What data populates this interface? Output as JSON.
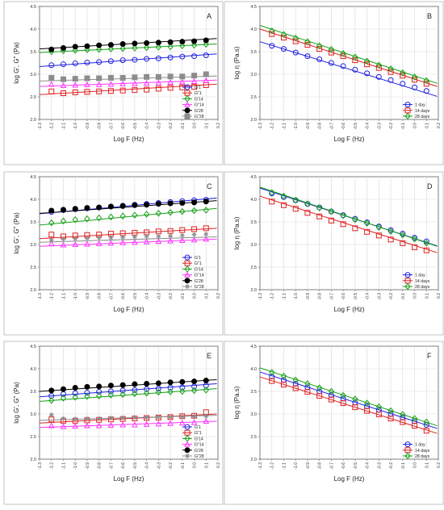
{
  "colors": {
    "blue": "#1f1fe0",
    "red": "#e02020",
    "green": "#16a016",
    "black": "#000000",
    "gray": "#8c8c8c",
    "magenta": "#ff33ff",
    "frame": "#7f7f7f",
    "grid": "#d9d9d9"
  },
  "chart_data": [
    {
      "panel": "A",
      "type": "scatter",
      "xlabel": "Log F (Hz)",
      "ylabel": "log G', G\" (Pa)",
      "xlim": [
        -1.3,
        0.2
      ],
      "ylim": [
        2.0,
        4.5
      ],
      "xticks": [
        "-1.3",
        "-1.2",
        "-1.1",
        "-1.0",
        "-0.9",
        "-0.8",
        "-0.7",
        "-0.6",
        "-0.5",
        "-0.4",
        "-0.3",
        "-0.2",
        "-0.1",
        "0.0",
        "0.1",
        "0.2"
      ],
      "yticks": [
        "2.0",
        "2.5",
        "3.0",
        "3.5",
        "4.0",
        "4.5"
      ],
      "x": [
        -1.2,
        -1.1,
        -1.0,
        -0.9,
        -0.8,
        -0.7,
        -0.6,
        -0.5,
        -0.4,
        -0.3,
        -0.2,
        -0.1,
        0.0,
        0.1
      ],
      "legend_position": "bottom-right",
      "series": [
        {
          "name": "G'1",
          "color": "blue",
          "marker": "circle-open",
          "values": [
            3.2,
            3.22,
            3.24,
            3.26,
            3.27,
            3.29,
            3.31,
            3.32,
            3.34,
            3.35,
            3.37,
            3.39,
            3.4,
            3.42
          ],
          "fit": [
            3.17,
            3.45
          ]
        },
        {
          "name": "G\"1",
          "color": "red",
          "marker": "square-open",
          "values": [
            2.62,
            2.58,
            2.6,
            2.61,
            2.62,
            2.63,
            2.64,
            2.65,
            2.66,
            2.68,
            2.7,
            2.71,
            2.72,
            2.76
          ],
          "fit": [
            2.55,
            2.78
          ]
        },
        {
          "name": "G'14",
          "color": "green",
          "marker": "diamond-open",
          "values": [
            3.5,
            3.52,
            3.53,
            3.54,
            3.55,
            3.56,
            3.57,
            3.58,
            3.59,
            3.6,
            3.61,
            3.63,
            3.64,
            3.66
          ],
          "fit": [
            3.48,
            3.67
          ]
        },
        {
          "name": "G\"14",
          "color": "magenta",
          "marker": "triangle-open",
          "values": [
            2.78,
            2.75,
            2.76,
            2.77,
            2.77,
            2.78,
            2.79,
            2.79,
            2.8,
            2.81,
            2.82,
            2.83,
            2.84,
            2.86
          ],
          "fit": [
            2.73,
            2.87
          ]
        },
        {
          "name": "G'28",
          "color": "black",
          "marker": "circle-filled",
          "values": [
            3.55,
            3.58,
            3.61,
            3.62,
            3.64,
            3.65,
            3.67,
            3.68,
            3.69,
            3.7,
            3.71,
            3.72,
            3.73,
            3.75
          ],
          "fit": [
            3.56,
            3.79
          ]
        },
        {
          "name": "G\"28",
          "color": "gray",
          "marker": "square-filled",
          "values": [
            2.92,
            2.89,
            2.9,
            2.91,
            2.91,
            2.92,
            2.92,
            2.93,
            2.94,
            2.94,
            2.95,
            2.95,
            2.97,
            3.0
          ],
          "fit": [
            2.85,
            2.96
          ]
        }
      ]
    },
    {
      "panel": "B",
      "type": "scatter",
      "xlabel": "Log F (Hz)",
      "ylabel": "log η (Pa.s)",
      "xlim": [
        -1.3,
        0.2
      ],
      "ylim": [
        2.0,
        4.5
      ],
      "xticks": [
        "-1.3",
        "-1.2",
        "-1.1",
        "-1.0",
        "-0.9",
        "-0.8",
        "-0.7",
        "-0.6",
        "-0.5",
        "-0.4",
        "-0.3",
        "-0.2",
        "-0.1",
        "0.0",
        "0.1",
        "0.2"
      ],
      "yticks": [
        "2.0",
        "2.5",
        "3.0",
        "3.5",
        "4.0",
        "4.5"
      ],
      "x": [
        -1.2,
        -1.1,
        -1.0,
        -0.9,
        -0.8,
        -0.7,
        -0.6,
        -0.5,
        -0.4,
        -0.3,
        -0.2,
        -0.1,
        0.0,
        0.1
      ],
      "legend_position": "bottom-right",
      "series": [
        {
          "name": "1 day",
          "color": "blue",
          "marker": "circle-open",
          "values": [
            3.63,
            3.56,
            3.48,
            3.4,
            3.33,
            3.25,
            3.18,
            3.1,
            3.02,
            2.94,
            2.87,
            2.79,
            2.71,
            2.63
          ],
          "fit": [
            3.72,
            2.51
          ]
        },
        {
          "name": "14 days",
          "color": "red",
          "marker": "square-open",
          "values": [
            3.89,
            3.81,
            3.73,
            3.65,
            3.56,
            3.48,
            3.4,
            3.31,
            3.22,
            3.14,
            3.05,
            2.97,
            2.88,
            2.79
          ],
          "fit": [
            4.0,
            2.73
          ]
        },
        {
          "name": "28 days",
          "color": "green",
          "marker": "diamond-open",
          "values": [
            3.96,
            3.88,
            3.8,
            3.72,
            3.63,
            3.55,
            3.46,
            3.38,
            3.29,
            3.2,
            3.12,
            3.03,
            2.94,
            2.86
          ],
          "fit": [
            4.08,
            2.8
          ]
        }
      ]
    },
    {
      "panel": "C",
      "type": "scatter",
      "xlabel": "Log F (Hz)",
      "ylabel": "log G', G\" (Pa)",
      "xlim": [
        -1.3,
        0.2
      ],
      "ylim": [
        2.0,
        4.5
      ],
      "xticks": [
        "-1.3",
        "-1.2",
        "-1.1",
        "-1.0",
        "-0.9",
        "-0.8",
        "-0.7",
        "-0.6",
        "-0.5",
        "-0.4",
        "-0.3",
        "-0.2",
        "-0.1",
        "0.0",
        "0.1",
        "0.2"
      ],
      "yticks": [
        "2.0",
        "2.5",
        "3.0",
        "3.5",
        "4.0",
        "4.5"
      ],
      "x": [
        -1.2,
        -1.1,
        -1.0,
        -0.9,
        -0.8,
        -0.7,
        -0.6,
        -0.5,
        -0.4,
        -0.3,
        -0.2,
        -0.1,
        0.0,
        0.1
      ],
      "legend_position": "bottom-right",
      "series": [
        {
          "name": "G'1",
          "color": "blue",
          "marker": "circle-open",
          "values": [
            3.72,
            3.76,
            3.78,
            3.8,
            3.82,
            3.84,
            3.86,
            3.88,
            3.9,
            3.92,
            3.94,
            3.96,
            3.98,
            3.99
          ],
          "fit": [
            3.68,
            4.03
          ]
        },
        {
          "name": "G\"1",
          "color": "red",
          "marker": "square-open",
          "values": [
            3.22,
            3.18,
            3.2,
            3.21,
            3.22,
            3.24,
            3.25,
            3.26,
            3.27,
            3.29,
            3.3,
            3.32,
            3.34,
            3.36
          ],
          "fit": [
            3.13,
            3.36
          ]
        },
        {
          "name": "G'14",
          "color": "green",
          "marker": "diamond-open",
          "values": [
            3.48,
            3.52,
            3.55,
            3.57,
            3.59,
            3.61,
            3.63,
            3.65,
            3.67,
            3.69,
            3.71,
            3.73,
            3.75,
            3.76
          ],
          "fit": [
            3.43,
            3.8
          ]
        },
        {
          "name": "G\"14",
          "color": "magenta",
          "marker": "triangle-open",
          "values": [
            3.02,
            2.99,
            3.0,
            3.01,
            3.02,
            3.03,
            3.04,
            3.05,
            3.06,
            3.07,
            3.08,
            3.09,
            3.1,
            3.12
          ],
          "fit": [
            2.96,
            3.12
          ]
        },
        {
          "name": "G'28",
          "color": "black",
          "marker": "circle-filled",
          "values": [
            3.75,
            3.77,
            3.79,
            3.81,
            3.82,
            3.84,
            3.85,
            3.87,
            3.88,
            3.9,
            3.91,
            3.92,
            3.93,
            3.95
          ],
          "fit": [
            3.69,
            3.97
          ]
        },
        {
          "name": "G\"28",
          "color": "gray",
          "marker": "star",
          "values": [
            3.1,
            3.12,
            3.13,
            3.14,
            3.15,
            3.15,
            3.16,
            3.17,
            3.18,
            3.18,
            3.19,
            3.2,
            3.22,
            3.23
          ],
          "fit": [
            3.05,
            3.17
          ]
        }
      ]
    },
    {
      "panel": "D",
      "type": "scatter",
      "xlabel": "Log F (Hz)",
      "ylabel": "log η (Pa.s)",
      "xlim": [
        -1.3,
        0.2
      ],
      "ylim": [
        2.0,
        4.5
      ],
      "xticks": [
        "-1.3",
        "-1.2",
        "-1.1",
        "-1.0",
        "-0.9",
        "-0.8",
        "-0.7",
        "-0.6",
        "-0.5",
        "-0.4",
        "-0.3",
        "-0.2",
        "-0.1",
        "0.0",
        "0.1",
        "0.2"
      ],
      "yticks": [
        "2.0",
        "2.5",
        "3.0",
        "3.5",
        "4.0",
        "4.5"
      ],
      "x": [
        -1.2,
        -1.1,
        -1.0,
        -0.9,
        -0.8,
        -0.7,
        -0.6,
        -0.5,
        -0.4,
        -0.3,
        -0.2,
        -0.1,
        0.0,
        0.1
      ],
      "legend_position": "bottom-right",
      "series": [
        {
          "name": "1 day",
          "color": "blue",
          "marker": "circle-open",
          "values": [
            4.13,
            4.05,
            3.98,
            3.9,
            3.82,
            3.73,
            3.65,
            3.57,
            3.49,
            3.4,
            3.32,
            3.24,
            3.15,
            3.07
          ],
          "fit": [
            4.25,
            2.97
          ]
        },
        {
          "name": "14 days",
          "color": "red",
          "marker": "square-open",
          "values": [
            3.95,
            3.87,
            3.79,
            3.7,
            3.62,
            3.53,
            3.45,
            3.36,
            3.28,
            3.2,
            3.11,
            3.03,
            2.94,
            2.87
          ],
          "fit": [
            4.07,
            2.82
          ]
        },
        {
          "name": "28 days",
          "color": "green",
          "marker": "diamond-open",
          "values": [
            4.15,
            4.07,
            3.98,
            3.9,
            3.81,
            3.73,
            3.64,
            3.55,
            3.47,
            3.38,
            3.29,
            3.21,
            3.12,
            3.03
          ],
          "fit": [
            4.27,
            2.96
          ]
        }
      ]
    },
    {
      "panel": "E",
      "type": "scatter",
      "xlabel": "Log F (Hz)",
      "ylabel": "log G', G\" (Pa)",
      "xlim": [
        -1.3,
        0.2
      ],
      "ylim": [
        2.0,
        4.5
      ],
      "xticks": [
        "-1.3",
        "-1.2",
        "-1.1",
        "-1.0",
        "-0.9",
        "-0.8",
        "-0.7",
        "-0.6",
        "-0.5",
        "-0.4",
        "-0.3",
        "-0.2",
        "-0.1",
        "0.0",
        "0.1",
        "0.2"
      ],
      "yticks": [
        "2.0",
        "2.5",
        "3.0",
        "3.5",
        "4.0",
        "4.5"
      ],
      "x": [
        -1.2,
        -1.1,
        -1.0,
        -0.9,
        -0.8,
        -0.7,
        -0.6,
        -0.5,
        -0.4,
        -0.3,
        -0.2,
        -0.1,
        0.0,
        0.1
      ],
      "legend_position": "bottom-right",
      "series": [
        {
          "name": "G'1",
          "color": "blue",
          "marker": "circle-open",
          "values": [
            3.4,
            3.44,
            3.46,
            3.47,
            3.49,
            3.5,
            3.52,
            3.53,
            3.55,
            3.56,
            3.58,
            3.59,
            3.61,
            3.63
          ],
          "fit": [
            3.38,
            3.67
          ]
        },
        {
          "name": "G\"1",
          "color": "red",
          "marker": "square-open",
          "values": [
            2.88,
            2.85,
            2.85,
            2.86,
            2.87,
            2.88,
            2.89,
            2.9,
            2.91,
            2.92,
            2.93,
            2.95,
            2.96,
            3.04
          ],
          "fit": [
            2.8,
            3.0
          ]
        },
        {
          "name": "G'14",
          "color": "green",
          "marker": "diamond-open",
          "values": [
            3.3,
            3.35,
            3.37,
            3.39,
            3.4,
            3.42,
            3.43,
            3.45,
            3.46,
            3.48,
            3.49,
            3.5,
            3.52,
            3.53
          ],
          "fit": [
            3.28,
            3.56
          ]
        },
        {
          "name": "G\"14",
          "color": "magenta",
          "marker": "triangle-open",
          "values": [
            2.74,
            2.72,
            2.73,
            2.74,
            2.74,
            2.75,
            2.76,
            2.76,
            2.77,
            2.78,
            2.79,
            2.8,
            2.81,
            2.84
          ],
          "fit": [
            2.7,
            2.84
          ]
        },
        {
          "name": "G'28",
          "color": "black",
          "marker": "circle-filled",
          "values": [
            3.52,
            3.55,
            3.58,
            3.6,
            3.61,
            3.63,
            3.64,
            3.66,
            3.67,
            3.68,
            3.7,
            3.71,
            3.72,
            3.74
          ],
          "fit": [
            3.5,
            3.76
          ]
        },
        {
          "name": "G\"28",
          "color": "gray",
          "marker": "star",
          "values": [
            2.98,
            2.9,
            2.89,
            2.9,
            2.9,
            2.91,
            2.91,
            2.92,
            2.92,
            2.93,
            2.93,
            2.94,
            2.94,
            2.95
          ],
          "fit": [
            2.86,
            2.97
          ]
        }
      ]
    },
    {
      "panel": "F",
      "type": "scatter",
      "xlabel": "Log F (Hz)",
      "ylabel": "log η (Pa.s)",
      "xlim": [
        -1.3,
        0.2
      ],
      "ylim": [
        2.0,
        4.5
      ],
      "xticks": [
        "-1.3",
        "-1.2",
        "-1.1",
        "-1.0",
        "-0.9",
        "-0.8",
        "-0.7",
        "-0.6",
        "-0.5",
        "-0.4",
        "-0.3",
        "-0.2",
        "-0.1",
        "0.0",
        "0.1",
        "0.2"
      ],
      "yticks": [
        "2.0",
        "2.5",
        "3.0",
        "3.5",
        "4.0",
        "4.5"
      ],
      "x": [
        -1.2,
        -1.1,
        -1.0,
        -0.9,
        -0.8,
        -0.7,
        -0.6,
        -0.5,
        -0.4,
        -0.3,
        -0.2,
        -0.1,
        0.0,
        0.1
      ],
      "legend_position": "bottom-right",
      "series": [
        {
          "name": "1 day",
          "color": "blue",
          "marker": "circle-open",
          "values": [
            3.83,
            3.75,
            3.67,
            3.59,
            3.5,
            3.42,
            3.34,
            3.25,
            3.17,
            3.09,
            3.0,
            2.92,
            2.84,
            2.76
          ],
          "fit": [
            3.93,
            2.68
          ]
        },
        {
          "name": "14 days",
          "color": "red",
          "marker": "square-open",
          "values": [
            3.73,
            3.65,
            3.57,
            3.49,
            3.4,
            3.32,
            3.24,
            3.15,
            3.07,
            2.99,
            2.9,
            2.82,
            2.74,
            2.63
          ],
          "fit": [
            3.82,
            2.57
          ]
        },
        {
          "name": "28 days",
          "color": "green",
          "marker": "diamond-open",
          "values": [
            3.92,
            3.84,
            3.75,
            3.67,
            3.58,
            3.5,
            3.41,
            3.33,
            3.24,
            3.16,
            3.07,
            2.99,
            2.9,
            2.82
          ],
          "fit": [
            4.02,
            2.74
          ]
        }
      ]
    }
  ]
}
